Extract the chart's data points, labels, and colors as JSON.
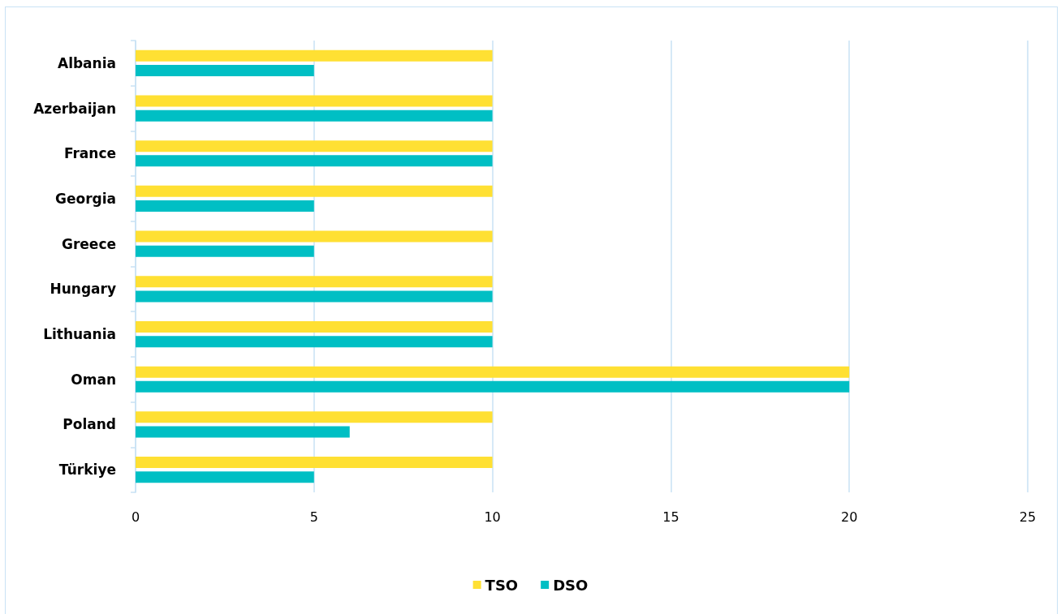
{
  "chart_data": {
    "type": "bar",
    "orientation": "horizontal",
    "categories": [
      "Albania",
      "Azerbaijan",
      "France",
      "Georgia",
      "Greece",
      "Hungary",
      "Lithuania",
      "Oman",
      "Poland",
      "Türkiye"
    ],
    "series": [
      {
        "name": "TSO",
        "color": "#ffe033",
        "values": [
          10,
          10,
          10,
          10,
          10,
          10,
          10,
          20,
          10,
          10
        ]
      },
      {
        "name": "DSO",
        "color": "#00bfc4",
        "values": [
          5,
          10,
          10,
          5,
          5,
          10,
          10,
          20,
          6,
          5
        ]
      }
    ],
    "xlim": [
      0,
      25
    ],
    "xticks": [
      0,
      5,
      10,
      15,
      20,
      25
    ],
    "grid": "x",
    "legend": "bottom"
  }
}
